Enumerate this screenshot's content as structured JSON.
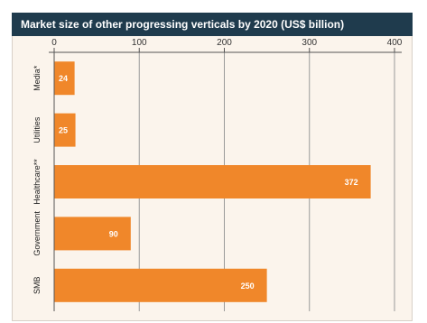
{
  "chart_data": {
    "type": "bar",
    "orientation": "horizontal",
    "title": "Market size of other progressing verticals by 2020 (US$ billion)",
    "categories": [
      "Media*",
      "Utilities",
      "Healthcare**",
      "Government",
      "SMB"
    ],
    "values": [
      24,
      25,
      372,
      90,
      250
    ],
    "xticks": [
      0,
      100,
      200,
      300,
      400
    ],
    "xlim": [
      0,
      400
    ],
    "xlabel": "",
    "ylabel": "",
    "grid": true,
    "bar_color": "#f0872a"
  }
}
